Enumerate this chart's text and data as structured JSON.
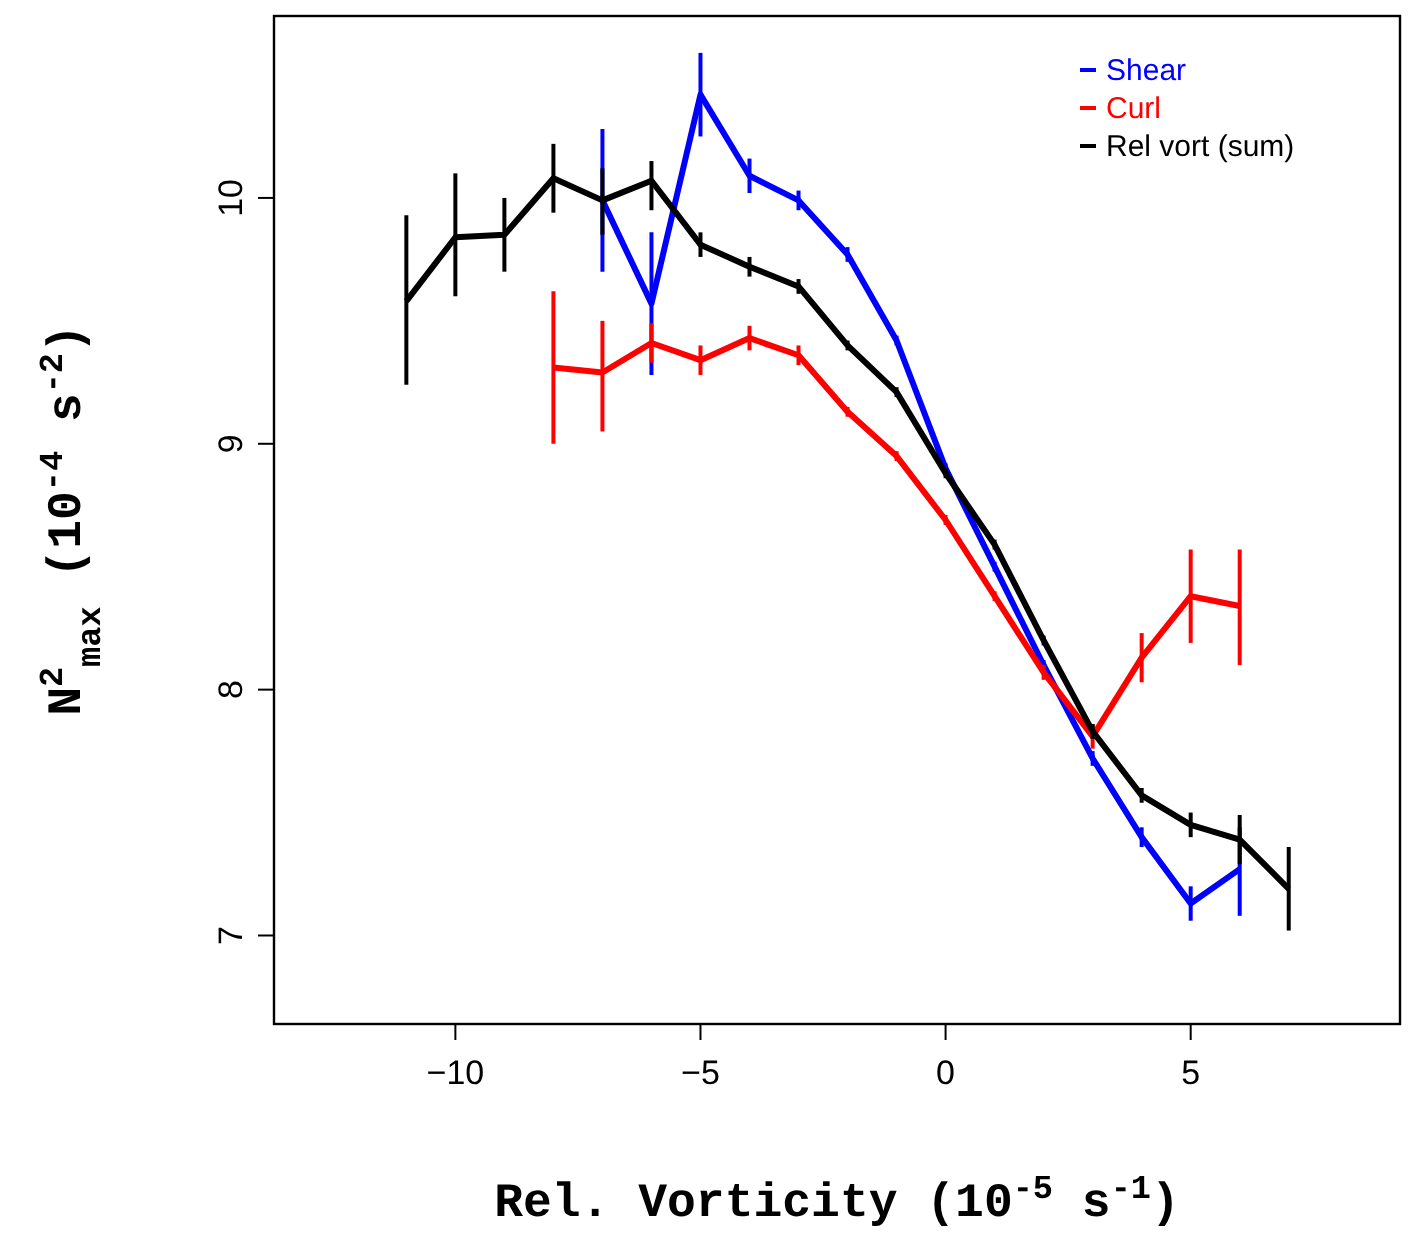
{
  "chart_data": {
    "type": "line",
    "xlabel": "Rel. Vorticity (10$^{-5}$ s$^{-1}$)",
    "ylabel": "N$^{2}$$_{max}$ (10$^{-4}$ s$^{-2}$)",
    "xlim": [
      -13.7,
      9.27
    ],
    "ylim": [
      6.64,
      10.74
    ],
    "xticks": [
      -10,
      -5,
      0,
      5
    ],
    "yticks": [
      7,
      8,
      9,
      10
    ],
    "grid": false,
    "legend": "top right",
    "marker": "none",
    "line_style": "solid",
    "series": [
      {
        "name": "Shear",
        "color": "#0000ff",
        "x": [
          -7,
          -6,
          -5,
          -4,
          -3,
          -2,
          -1,
          0,
          1,
          2,
          3,
          4,
          5,
          6
        ],
        "values": [
          9.99,
          9.57,
          10.42,
          10.09,
          9.99,
          9.77,
          9.42,
          8.9,
          8.5,
          8.1,
          7.72,
          7.4,
          7.13,
          7.27
        ],
        "errors": [
          0.29,
          [
            9.28,
            9.86
          ],
          0.17,
          0.07,
          0.04,
          0.03,
          0.02,
          0.02,
          0.02,
          0.02,
          0.03,
          0.04,
          0.07,
          [
            7.08,
            7.44
          ]
        ]
      },
      {
        "name": "Curl",
        "color": "#ff0000",
        "x": [
          -8,
          -7,
          -6,
          -5,
          -4,
          -3,
          -2,
          -1,
          0,
          1,
          2,
          3,
          4,
          5,
          6
        ],
        "values": [
          9.31,
          9.29,
          9.41,
          9.34,
          9.43,
          9.36,
          9.13,
          8.95,
          8.69,
          8.38,
          8.07,
          7.81,
          8.13,
          8.38,
          8.34
        ],
        "errors": [
          0.31,
          [
            9.05,
            9.5
          ],
          0.08,
          0.06,
          0.05,
          0.04,
          0.02,
          0.02,
          0.02,
          0.02,
          0.03,
          0.05,
          0.1,
          [
            8.19,
            8.57
          ],
          [
            8.1,
            8.57
          ]
        ]
      },
      {
        "name": "Rel vort (sum)",
        "color": "#000000",
        "x": [
          -11,
          -10,
          -9,
          -8,
          -7,
          -6,
          -5,
          -4,
          -3,
          -2,
          -1,
          0,
          1,
          2,
          3,
          4,
          5,
          6,
          7
        ],
        "values": [
          9.58,
          9.84,
          9.85,
          10.08,
          9.99,
          10.07,
          9.81,
          9.72,
          9.64,
          9.4,
          9.21,
          8.88,
          8.59,
          8.2,
          7.83,
          7.57,
          7.45,
          7.39,
          7.19
        ],
        "errors": [
          [
            9.24,
            9.93
          ],
          [
            9.6,
            10.1
          ],
          [
            9.7,
            10.0
          ],
          [
            9.94,
            10.22
          ],
          [
            9.85,
            10.12
          ],
          [
            9.95,
            10.15
          ],
          0.05,
          0.04,
          0.03,
          0.02,
          0.02,
          0.02,
          0.02,
          0.02,
          0.03,
          0.03,
          0.05,
          0.1,
          [
            7.02,
            7.36
          ]
        ]
      }
    ]
  }
}
